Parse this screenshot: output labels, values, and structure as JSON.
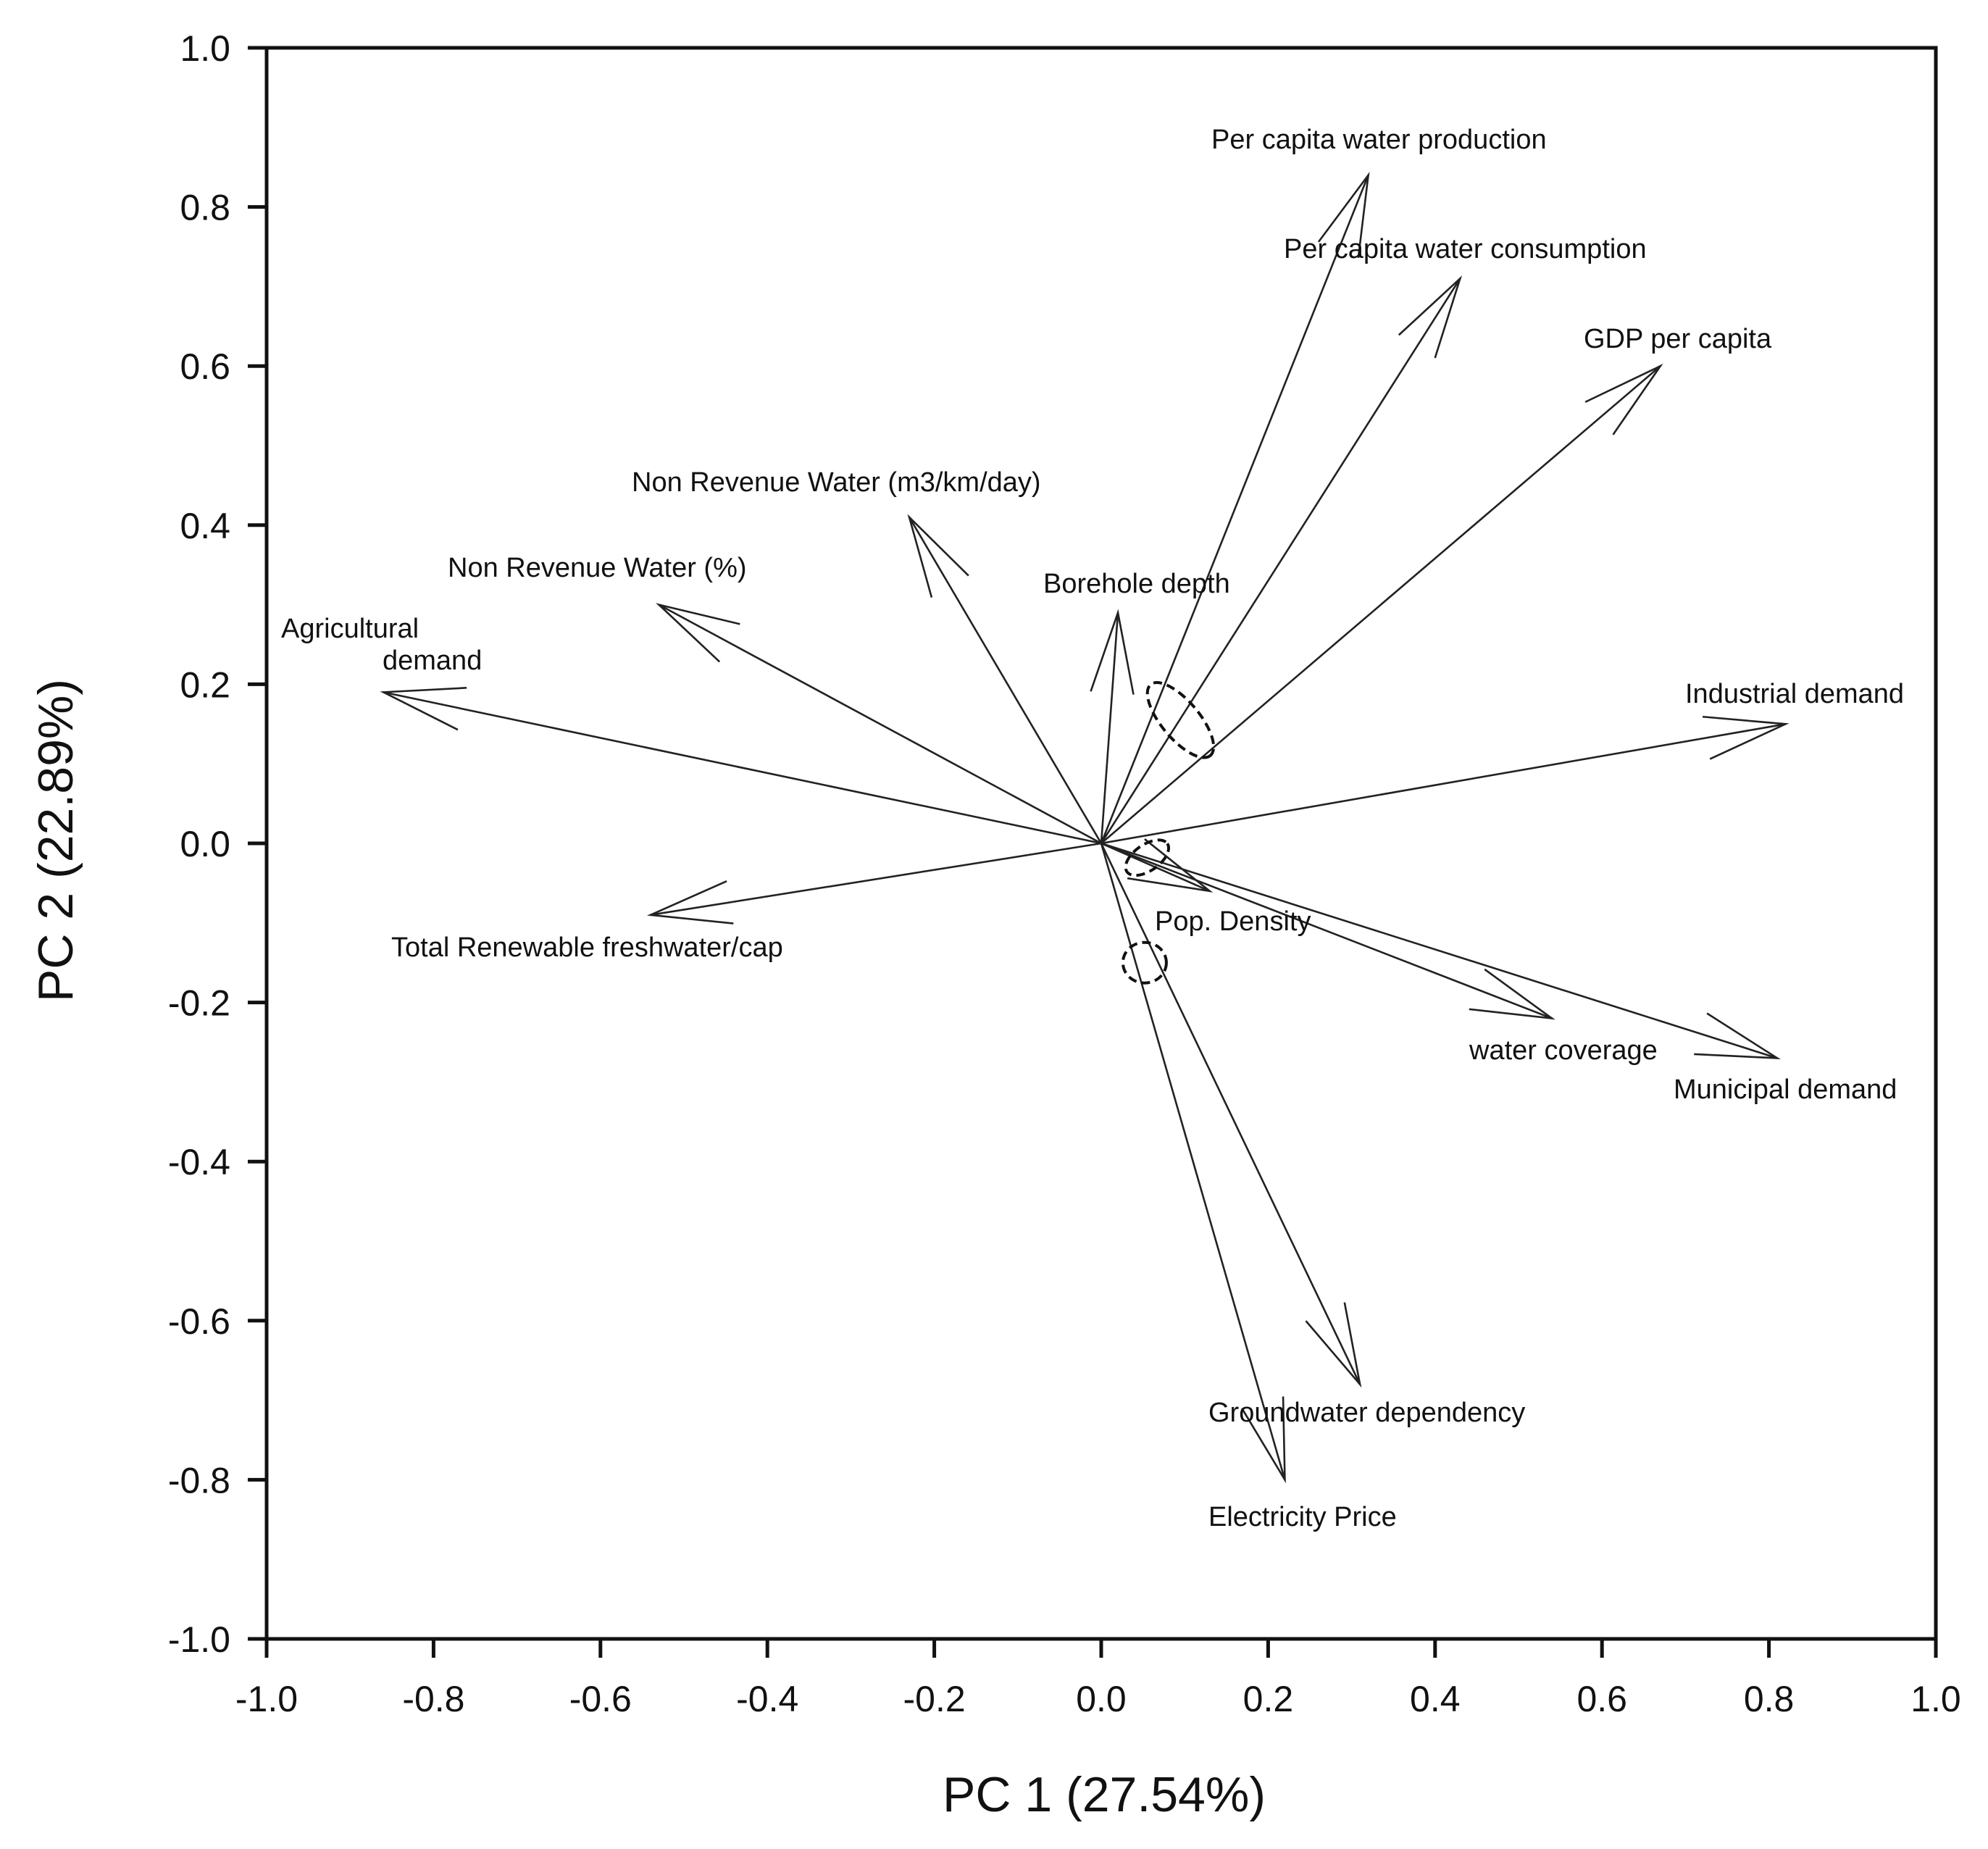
{
  "chart_data": {
    "type": "biplot",
    "xlabel": "PC 1 (27.54%)",
    "ylabel": "PC 2 (22.89%)",
    "xlim": [
      -1.0,
      1.0
    ],
    "ylim": [
      -1.0,
      1.0
    ],
    "x_ticks": [
      -1.0,
      -0.8,
      -0.6,
      -0.4,
      -0.2,
      0.0,
      0.2,
      0.4,
      0.6,
      0.8,
      1.0
    ],
    "y_ticks": [
      1.0,
      0.8,
      0.6,
      0.4,
      0.2,
      0.0,
      -0.2,
      -0.4,
      -0.6,
      -0.8,
      -1.0
    ],
    "x_tick_labels": [
      "-1.0",
      "-0.8",
      "-0.6",
      "-0.4",
      "-0.2",
      "0.0",
      "0.2",
      "0.4",
      "0.6",
      "0.8",
      "1.0"
    ],
    "y_tick_labels": [
      "1.0",
      "0.8",
      "0.6",
      "0.4",
      "0.2",
      "0.0",
      "-0.2",
      "-0.4",
      "-0.6",
      "-0.8",
      "-1.0"
    ],
    "vectors": [
      {
        "name": "Per capita water production",
        "x": 0.32,
        "y": 0.84
      },
      {
        "name": "Per capita water consumption",
        "x": 0.43,
        "y": 0.71
      },
      {
        "name": "GDP per capita",
        "x": 0.67,
        "y": 0.6
      },
      {
        "name": "Non Revenue Water (m3/km/day)",
        "x": -0.23,
        "y": 0.41
      },
      {
        "name": "Non Revenue Water (%)",
        "x": -0.53,
        "y": 0.3
      },
      {
        "name": "Agricultural demand",
        "x": -0.86,
        "y": 0.19
      },
      {
        "name": "Borehole depth",
        "x": 0.02,
        "y": 0.29
      },
      {
        "name": "Industrial  demand",
        "x": 0.82,
        "y": 0.15
      },
      {
        "name": "Total Renewable freshwater/cap",
        "x": -0.54,
        "y": -0.09
      },
      {
        "name": "Pop. Density",
        "x": 0.13,
        "y": -0.06
      },
      {
        "name": "water coverage",
        "x": 0.54,
        "y": -0.22
      },
      {
        "name": "Municipal  demand",
        "x": 0.81,
        "y": -0.27
      },
      {
        "name": "Groundwater dependency",
        "x": 0.31,
        "y": -0.68
      },
      {
        "name": "Electricity Price",
        "x": 0.22,
        "y": -0.8
      }
    ],
    "grouping_ellipses": 3,
    "grid": false
  }
}
